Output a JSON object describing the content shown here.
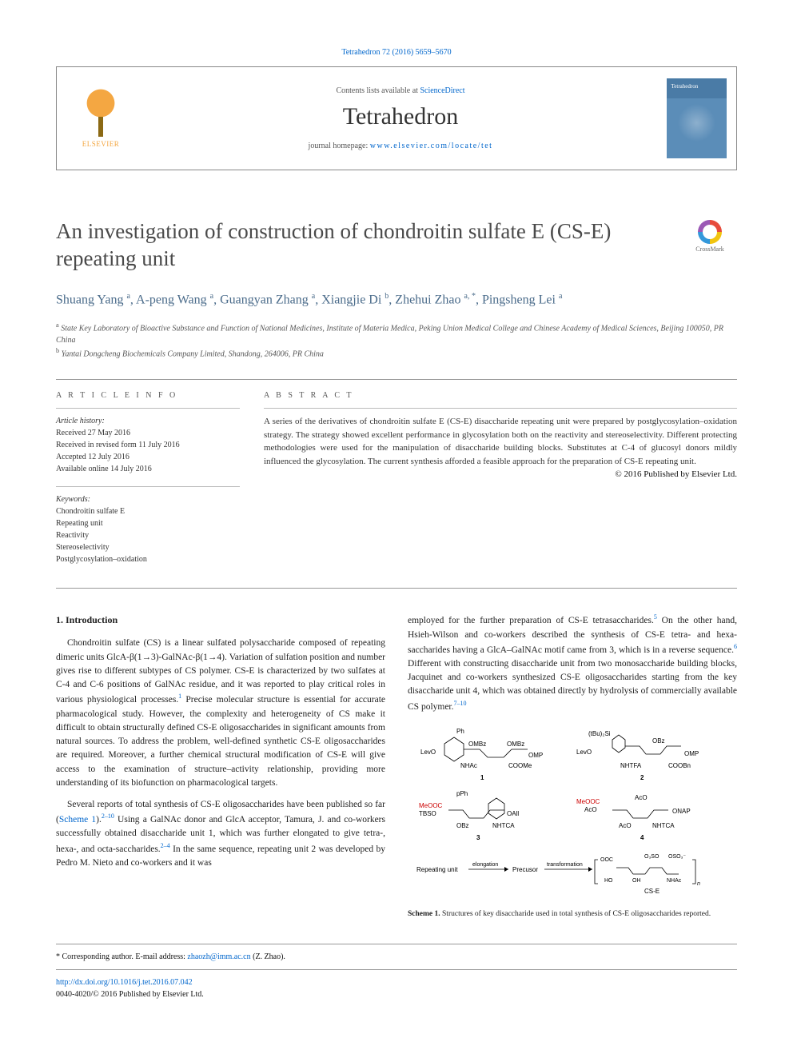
{
  "citation": "Tetrahedron 72 (2016) 5659–5670",
  "header": {
    "contents_prefix": "Contents lists available at ",
    "contents_link": "ScienceDirect",
    "journal": "Tetrahedron",
    "homepage_prefix": "journal homepage: ",
    "homepage_url": "www.elsevier.com/locate/tet",
    "publisher": "ELSEVIER"
  },
  "title": "An investigation of construction of chondroitin sulfate E (CS-E) repeating unit",
  "crossmark": "CrossMark",
  "authors_html": "Shuang Yang <sup>a</sup>, A-peng Wang <sup>a</sup>, Guangyan Zhang <sup>a</sup>, Xiangjie Di <sup>b</sup>, Zhehui Zhao <sup>a, *</sup>, Pingsheng Lei <sup>a</sup>",
  "affiliations": {
    "a": "State Key Laboratory of Bioactive Substance and Function of National Medicines, Institute of Materia Medica, Peking Union Medical College and Chinese Academy of Medical Sciences, Beijing 100050, PR China",
    "b": "Yantai Dongcheng Biochemicals Company Limited, Shandong, 264006, PR China"
  },
  "article_info": {
    "label": "A R T I C L E  I N F O",
    "history_label": "Article history:",
    "received": "Received 27 May 2016",
    "revised": "Received in revised form 11 July 2016",
    "accepted": "Accepted 12 July 2016",
    "online": "Available online 14 July 2016",
    "keywords_label": "Keywords:",
    "keywords": [
      "Chondroitin sulfate E",
      "Repeating unit",
      "Reactivity",
      "Stereoselectivity",
      "Postglycosylation–oxidation"
    ]
  },
  "abstract": {
    "label": "A B S T R A C T",
    "text": "A series of the derivatives of chondroitin sulfate E (CS-E) disaccharide repeating unit were prepared by postglycosylation–oxidation strategy. The strategy showed excellent performance in glycosylation both on the reactivity and stereoselectivity. Different protecting methodologies were used for the manipulation of disaccharide building blocks. Substitutes at C-4 of glucosyl donors mildly influenced the glycosylation. The current synthesis afforded a feasible approach for the preparation of CS-E repeating unit.",
    "copyright": "© 2016 Published by Elsevier Ltd."
  },
  "body": {
    "heading": "1. Introduction",
    "p1": "Chondroitin sulfate (CS) is a linear sulfated polysaccharide composed of repeating dimeric units GlcA-β(1→3)-GalNAc-β(1→4). Variation of sulfation position and number gives rise to different subtypes of CS polymer. CS-E is characterized by two sulfates at C-4 and C-6 positions of GalNAc residue, and it was reported to play critical roles in various physiological processes.",
    "p1_tail": " Precise molecular structure is essential for accurate pharmacological study. However, the complexity and heterogeneity of CS make it difficult to obtain structurally defined CS-E oligosaccharides in significant amounts from natural sources. To address the problem, well-defined synthetic CS-E oligosaccharides are required. Moreover, a further chemical structural modification of CS-E will give access to the examination of structure–activity relationship, providing more understanding of its biofunction on pharmacological targets.",
    "p2_a": "Several reports of total synthesis of CS-E oligosaccharides have been published so far (",
    "p2_scheme": "Scheme 1",
    "p2_b": ").",
    "p2_c": " Using a GalNAc donor and GlcA acceptor, Tamura, J. and co-workers successfully obtained disaccharide unit 1, which was further elongated to give tetra-, hexa-, and octa-saccharides.",
    "p2_d": " In the same sequence, repeating unit 2 was developed by Pedro M. Nieto and co-workers and it was",
    "p3_a": "employed for the further preparation of CS-E tetrasaccharides.",
    "p3_b": " On the other hand, Hsieh-Wilson and co-workers described the synthesis of CS-E tetra- and hexa-saccharides having a GlcA–GalNAc motif came from 3, which is in a reverse sequence.",
    "p3_c": " Different with constructing disaccharide unit from two monosaccharide building blocks, Jacquinet and co-workers synthesized CS-E oligosaccharides starting from the key disaccharide unit 4, which was obtained directly by hydrolysis of commercially available CS polymer.",
    "ref1": "1",
    "ref2_10": "2–10",
    "ref2_4": "2–4",
    "ref5": "5",
    "ref6": "6",
    "ref7_10": "7–10"
  },
  "scheme": {
    "caption_label": "Scheme 1.",
    "caption_text": " Structures of key disaccharide used in total synthesis of CS-E oligosaccharides reported.",
    "label1": "1",
    "label2": "2",
    "label3": "3",
    "label4": "4",
    "txt_ph": "Ph",
    "txt_ombz": "OMBz",
    "txt_levo": "LevO",
    "txt_nhac": "NHAc",
    "txt_coome": "COOMe",
    "txt_tbusi": "(tBu)₂Si",
    "txt_obz": "OBz",
    "txt_omp": "OMP",
    "txt_nhtfa": "NHTFA",
    "txt_coobn": "COOBn",
    "txt_pph": "pPh",
    "txt_meooc": "MeOOC",
    "txt_tbso": "TBSO",
    "txt_oall": "OAll",
    "txt_nhtca": "NHTCA",
    "txt_aco": "AcO",
    "txt_onap": "ONAP",
    "txt_repeating": "Repeating unit",
    "txt_elongation": "elongation",
    "txt_precursor": "Precusor",
    "txt_transformation": "transformation",
    "txt_ooc": "OOC",
    "txt_oso3": "O₃SO",
    "txt_oso3b": "OSO₃⁻",
    "txt_ho": "HO",
    "txt_oh": "OH",
    "txt_cse": "CS-E",
    "txt_o": "O",
    "txt_n": "n"
  },
  "footer": {
    "corr": "* Corresponding author. E-mail address: ",
    "email": "zhaozh@imm.ac.cn",
    "corr_name": " (Z. Zhao).",
    "doi": "http://dx.doi.org/10.1016/j.tet.2016.07.042",
    "issn": "0040-4020/© 2016 Published by Elsevier Ltd."
  },
  "colors": {
    "link": "#0066cc",
    "author": "#4a6b8a",
    "red_chem": "#cc0000"
  }
}
